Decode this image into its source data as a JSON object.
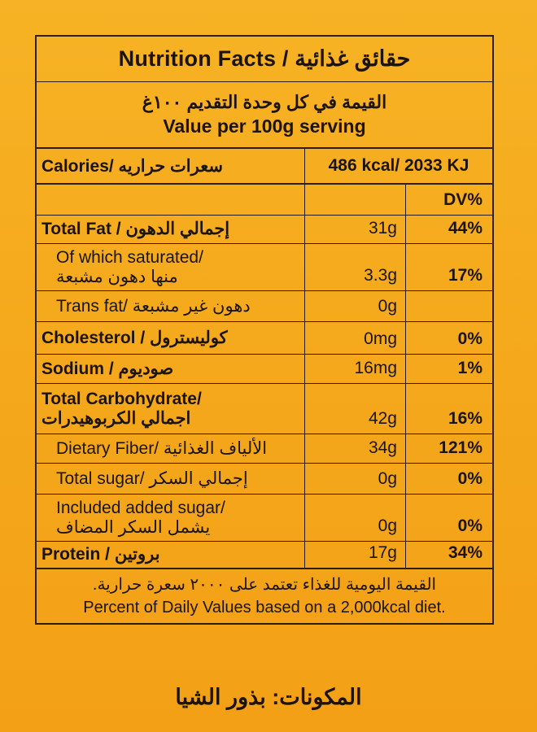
{
  "title": "Nutrition Facts / حقائق غذائية",
  "serving": {
    "arabic": "القيمة في كل وحدة التقديم ١٠٠غ",
    "english": "Value per 100g serving"
  },
  "calories": {
    "label": "Calories/ سعرات حراريه",
    "value": "486 kcal/ 2033 KJ"
  },
  "dv_header": "DV%",
  "rows": [
    {
      "lines": [
        "Total Fat / إجمالي الدهون"
      ],
      "amount": "31g",
      "dv": "44%",
      "bold": true,
      "indent": false,
      "height": 35
    },
    {
      "lines": [
        "Of which saturated/",
        "منها دهون مشبعة"
      ],
      "amount": "3.3g",
      "dv": "17%",
      "bold": false,
      "indent": true,
      "height": 58
    },
    {
      "lines": [
        "Trans fat/ دهون غير مشبعة"
      ],
      "amount": "0g",
      "dv": "",
      "bold": false,
      "indent": true,
      "height": 38
    },
    {
      "lines": [
        "Cholesterol / كوليسترول"
      ],
      "amount": "0mg",
      "dv": "0%",
      "bold": true,
      "indent": false,
      "height": 40
    },
    {
      "lines": [
        "Sodium / صوديوم"
      ],
      "amount": "16mg",
      "dv": "1%",
      "bold": true,
      "indent": false,
      "height": 36
    },
    {
      "lines": [
        "Total Carbohydrate/",
        "اجمالي الكربوهيدرات"
      ],
      "amount": "42g",
      "dv": "16%",
      "bold": true,
      "indent": false,
      "height": 62
    },
    {
      "lines": [
        "Dietary Fiber/ الألياف الغذائية"
      ],
      "amount": "34g",
      "dv": "121%",
      "bold": false,
      "indent": true,
      "height": 36
    },
    {
      "lines": [
        "Total sugar/ إجمالي السكر"
      ],
      "amount": "0g",
      "dv": "0%",
      "bold": false,
      "indent": true,
      "height": 38
    },
    {
      "lines": [
        "Included added sugar/",
        "يشمل السكر المضاف"
      ],
      "amount": "0g",
      "dv": "0%",
      "bold": false,
      "indent": true,
      "height": 58
    },
    {
      "lines": [
        "Protein / بروتين"
      ],
      "amount": "17g",
      "dv": "34%",
      "bold": true,
      "indent": false,
      "height": 34
    }
  ],
  "footer": {
    "arabic": "القيمة اليومية للغذاء تعتمد على ٢٠٠٠ سعرة حرارية.",
    "english": "Percent of Daily Values based on a 2,000kcal diet."
  },
  "ingredients": "المكونات: بذور الشيا"
}
